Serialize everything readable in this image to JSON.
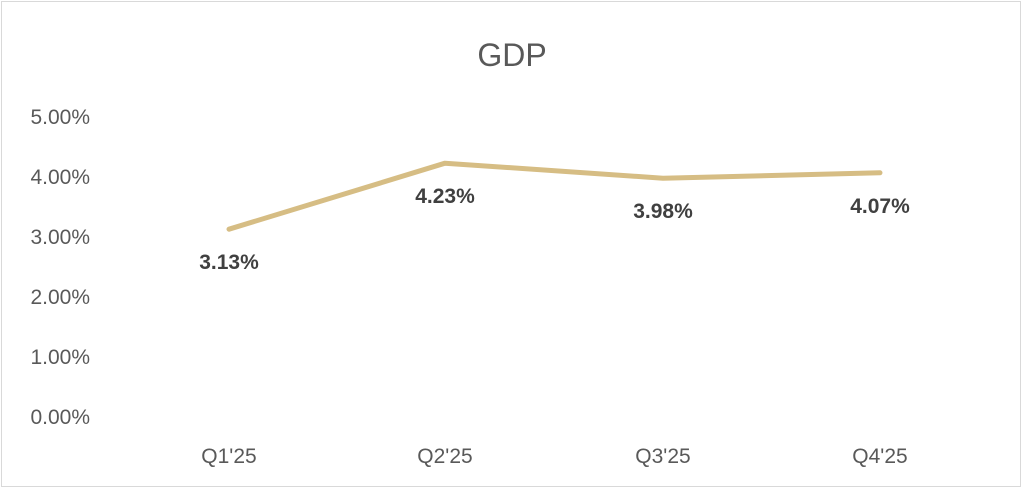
{
  "chart_data": {
    "type": "line",
    "title": "GDP",
    "xlabel": "",
    "ylabel": "",
    "categories": [
      "Q1'25",
      "Q2'25",
      "Q3'25",
      "Q4'25"
    ],
    "series": [
      {
        "values": [
          3.13,
          4.23,
          3.98,
          4.07
        ],
        "data_labels": [
          "3.13%",
          "4.23%",
          "3.98%",
          "4.07%"
        ],
        "color": "#d6bd84"
      }
    ],
    "ylim": [
      0,
      5
    ],
    "y_ticks": [
      "0.00%",
      "1.00%",
      "2.00%",
      "3.00%",
      "4.00%",
      "5.00%"
    ],
    "grid": false,
    "legend": "none"
  }
}
